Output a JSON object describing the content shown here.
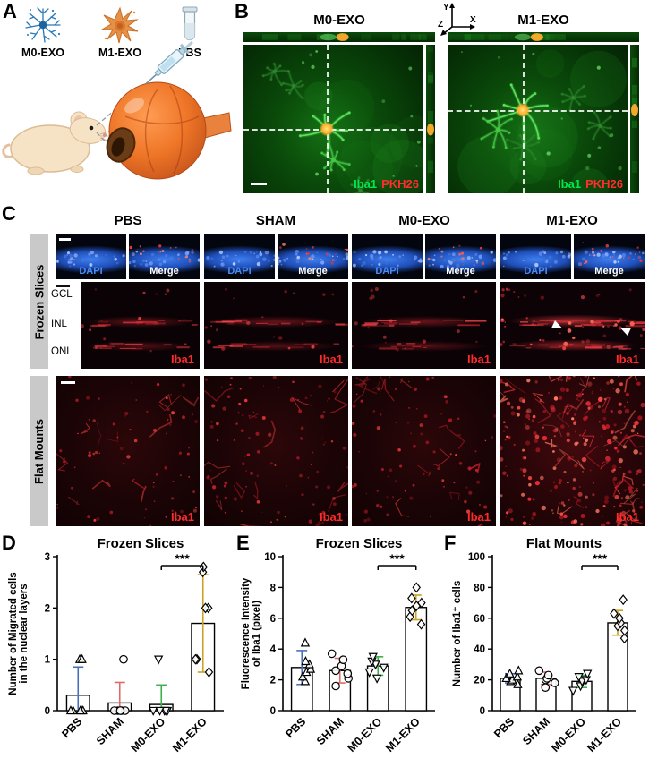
{
  "colors": {
    "iba1_green": "#00e64d",
    "pkh26_red": "#ff2d2d",
    "dapi_blue": "#4b8bf5",
    "iba1_red": "#ff2a2a"
  },
  "panels": {
    "A": {
      "label": "A",
      "legend": [
        {
          "name": "M0-EXO"
        },
        {
          "name": "M1-EXO"
        },
        {
          "name": "PBS"
        }
      ]
    },
    "B": {
      "label": "B",
      "axes": {
        "x": "X",
        "y": "Y",
        "z": "Z"
      },
      "images": [
        {
          "title": "M0-EXO",
          "green_label": "Iba1",
          "red_label": "PKH26"
        },
        {
          "title": "M1-EXO",
          "green_label": "Iba1",
          "red_label": "PKH26"
        }
      ]
    },
    "C": {
      "label": "C",
      "columns": [
        "PBS",
        "SHAM",
        "M0-EXO",
        "M1-EXO"
      ],
      "row_groups": [
        {
          "label": "Frozen Slices"
        },
        {
          "label": "Flat Mounts"
        }
      ],
      "inset_labels": {
        "dapi": "DAPI",
        "merge": "Merge"
      },
      "layer_labels": [
        "GCL",
        "INL",
        "ONL"
      ],
      "stain_label": "Iba1"
    },
    "D": {
      "label": "D"
    },
    "E": {
      "label": "E"
    },
    "F": {
      "label": "F"
    }
  },
  "chart_style": {
    "group_marker_shapes": [
      "triangle-up",
      "circle",
      "triangle-down",
      "diamond"
    ],
    "group_error_colors": [
      "#4a6fb5",
      "#e06a6a",
      "#3fae4e",
      "#c9a227"
    ],
    "bar_fill": "#ffffff",
    "bar_stroke": "#000000"
  },
  "chart_data": [
    {
      "id": "D",
      "type": "bar",
      "title": "Frozen Slices",
      "ylabel": "Number of Migrated cells in the nuclear layers",
      "ylabel_lines": [
        "Number of Migrated cells",
        "in the nuclear layers"
      ],
      "categories": [
        "PBS",
        "SHAM",
        "M0-EXO",
        "M1-EXO"
      ],
      "values": [
        0.3,
        0.15,
        0.12,
        1.7
      ],
      "errors": [
        0.55,
        0.4,
        0.38,
        0.95
      ],
      "points": [
        [
          0,
          0,
          0,
          0,
          0,
          1,
          1
        ],
        [
          0,
          0,
          0,
          0,
          0,
          0,
          1
        ],
        [
          0,
          0,
          0,
          0,
          0,
          1
        ],
        [
          0.75,
          1,
          1,
          2,
          2,
          2.7,
          2.8
        ]
      ],
      "ylim": [
        0,
        3
      ],
      "yticks": [
        0,
        1,
        2,
        3
      ],
      "significance": {
        "label": "***",
        "from": 2,
        "to": 3
      }
    },
    {
      "id": "E",
      "type": "bar",
      "title": "Frozen Slices",
      "ylabel": "Fluorescence Intensity of Iba1 (pixel)",
      "ylabel_lines": [
        "Fluorescence Intensity",
        "of Iba1 (pixel)"
      ],
      "categories": [
        "PBS",
        "SHAM",
        "M0-EXO",
        "M1-EXO"
      ],
      "values": [
        2.8,
        2.6,
        2.9,
        6.7
      ],
      "errors": [
        1.1,
        0.8,
        0.6,
        0.8
      ],
      "points": [
        [
          1.9,
          2.2,
          2.5,
          2.7,
          3.0,
          3.2,
          4.4
        ],
        [
          1.6,
          2.1,
          2.4,
          2.6,
          2.9,
          3.3,
          3.7
        ],
        [
          2.1,
          2.5,
          2.8,
          3.0,
          3.2,
          3.5
        ],
        [
          5.6,
          6.1,
          6.5,
          6.8,
          7.0,
          7.3,
          8.0
        ]
      ],
      "ylim": [
        0,
        10
      ],
      "yticks": [
        0,
        2,
        4,
        6,
        8,
        10
      ],
      "significance": {
        "label": "***",
        "from": 2,
        "to": 3
      }
    },
    {
      "id": "F",
      "type": "bar",
      "title": "Flat Mounts",
      "ylabel": "Number of Iba1⁺ cells",
      "ylabel_lines": [
        "Number of Iba1⁺ cells"
      ],
      "categories": [
        "PBS",
        "SHAM",
        "M0-EXO",
        "M1-EXO"
      ],
      "values": [
        21,
        21,
        19,
        57
      ],
      "errors": [
        3,
        4,
        4,
        8
      ],
      "points": [
        [
          17,
          19,
          20,
          21,
          22,
          24,
          26
        ],
        [
          15,
          18,
          20,
          21,
          23,
          26
        ],
        [
          13,
          16,
          19,
          20,
          22,
          24
        ],
        [
          47,
          52,
          55,
          57,
          60,
          63,
          72
        ]
      ],
      "ylim": [
        0,
        100
      ],
      "yticks": [
        0,
        20,
        40,
        60,
        80,
        100
      ],
      "significance": {
        "label": "***",
        "from": 2,
        "to": 3
      }
    }
  ]
}
